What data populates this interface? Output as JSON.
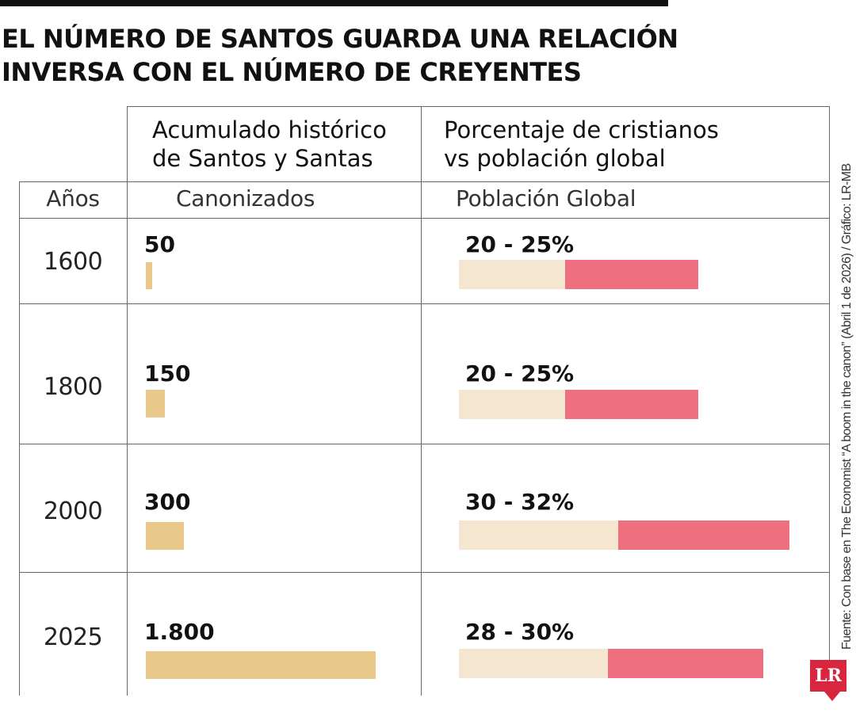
{
  "title_lines": [
    "EL NÚMERO DE SANTOS GUARDA UNA RELACIÓN",
    "INVERSA CON EL NÚMERO DE CREYENTES"
  ],
  "col1_header": [
    "Acumulado histórico",
    "de Santos y Santas"
  ],
  "col2_header": [
    "Porcentaje de cristianos",
    "vs población global"
  ],
  "sub_years": "Años",
  "sub_saints": "Canonizados",
  "sub_pop": "Población Global",
  "source": "Fuente: Con base en The Economist “A boom in the canon” (Abril 1 de 2026) / Gráfico: LR-MB",
  "logo": "LR",
  "colors": {
    "saints": "#e8c98b",
    "range_low": "#f5e6d2",
    "range_high": "#ee6f80",
    "logo": "#d7263d"
  },
  "chart_data": {
    "type": "bar",
    "categories": [
      "1600",
      "1800",
      "2000",
      "2025"
    ],
    "series": [
      {
        "name": "Canonizados",
        "values": [
          50,
          150,
          300,
          1800
        ],
        "labels": [
          "50",
          "150",
          "300",
          "1.800"
        ]
      },
      {
        "name": "Población Global",
        "low": [
          20,
          20,
          30,
          28
        ],
        "high": [
          25,
          25,
          32,
          30
        ],
        "labels": [
          "20 - 25%",
          "20 - 25%",
          "30 - 32%",
          "28 - 30%"
        ]
      }
    ]
  }
}
